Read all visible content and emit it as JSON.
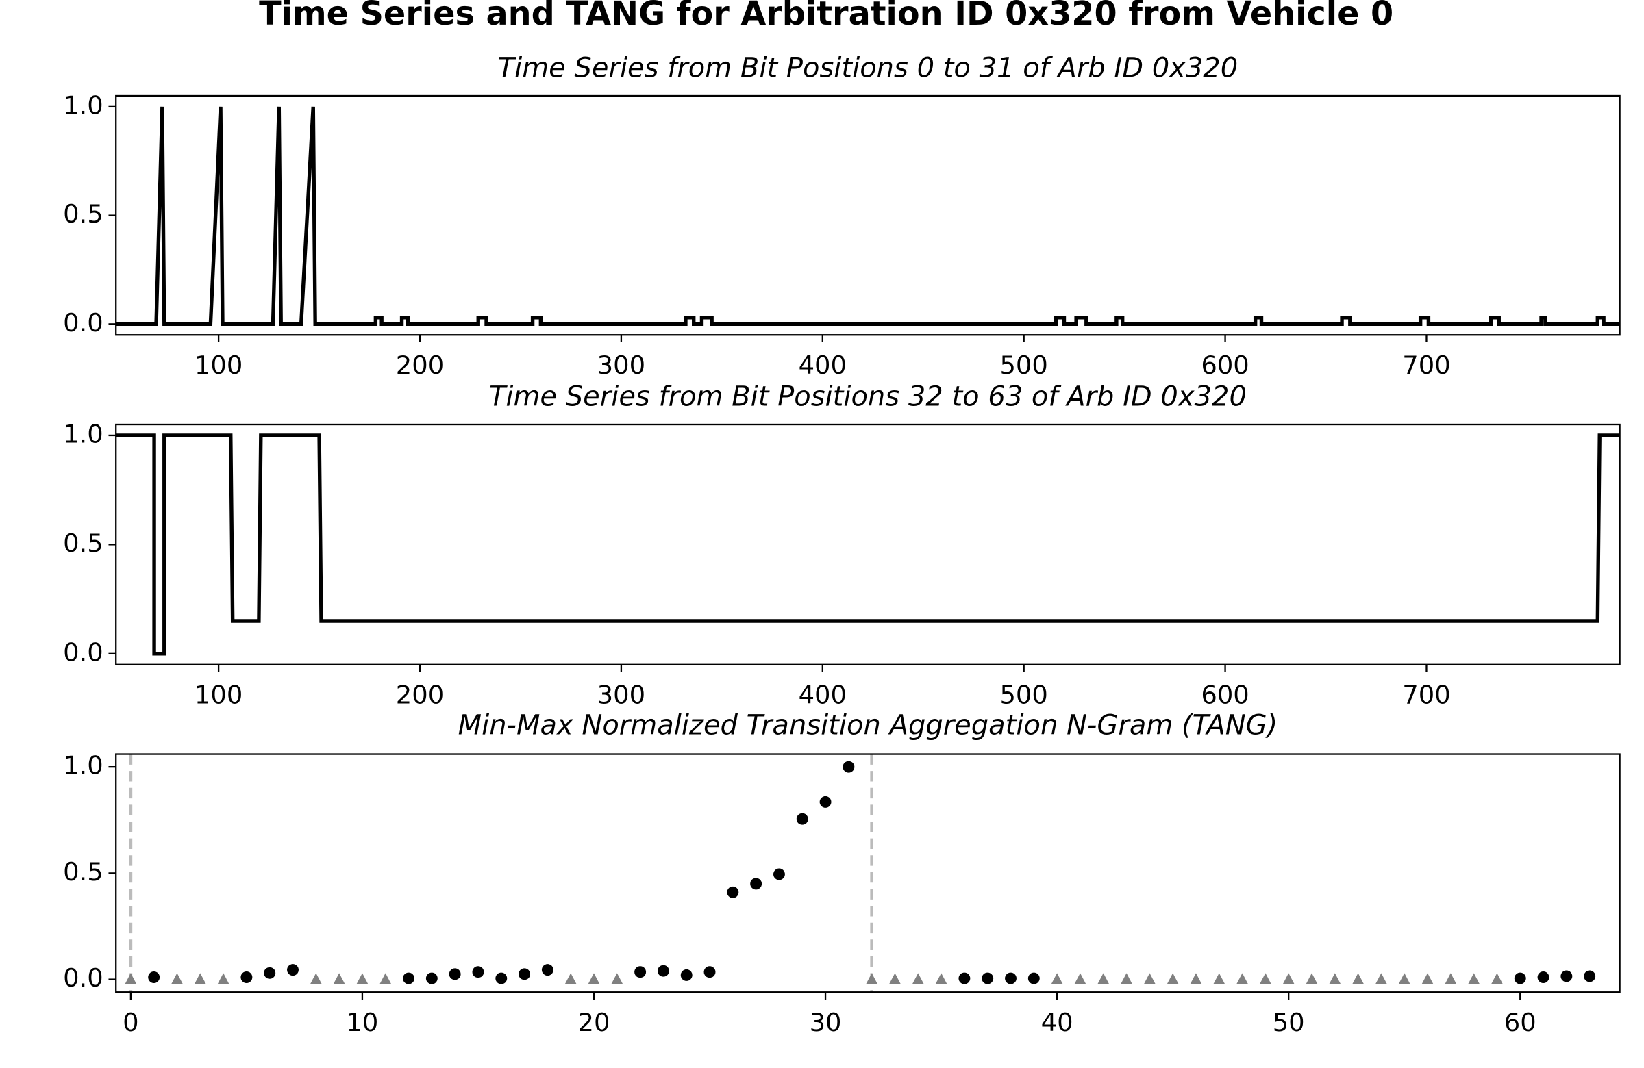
{
  "title": "Time Series and TANG for Arbitration ID 0x320 from Vehicle 0",
  "chart_data": [
    {
      "type": "line",
      "title": "Time Series from Bit Positions 0 to 31 of Arb ID 0x320",
      "color": "#000000",
      "x": [
        49,
        69,
        72,
        73,
        96,
        101,
        102,
        127,
        130,
        131,
        141,
        147,
        148,
        178,
        178,
        181,
        181,
        191,
        191,
        194,
        194,
        229,
        229,
        233,
        233,
        256,
        256,
        260,
        260,
        332,
        332,
        336,
        336,
        340,
        340,
        345,
        345,
        516,
        516,
        520,
        520,
        526,
        526,
        531,
        531,
        546,
        546,
        549,
        549,
        615,
        615,
        618,
        618,
        658,
        658,
        662,
        662,
        697,
        697,
        701,
        701,
        732,
        732,
        736,
        736,
        757,
        757,
        759,
        759,
        785,
        785,
        788,
        788,
        796
      ],
      "values": [
        0,
        0,
        1,
        0,
        0,
        1,
        0,
        0,
        1,
        0,
        0,
        1,
        0,
        0,
        0.03,
        0.03,
        0,
        0,
        0.03,
        0.03,
        0,
        0,
        0.03,
        0.03,
        0,
        0,
        0.03,
        0.03,
        0,
        0,
        0.03,
        0.03,
        0,
        0,
        0.03,
        0.03,
        0,
        0,
        0.03,
        0.03,
        0,
        0,
        0.03,
        0.03,
        0,
        0,
        0.03,
        0.03,
        0,
        0,
        0.03,
        0.03,
        0,
        0,
        0.03,
        0.03,
        0,
        0,
        0.03,
        0.03,
        0,
        0,
        0.03,
        0.03,
        0,
        0,
        0.03,
        0.03,
        0,
        0,
        0.03,
        0.03,
        0,
        0
      ],
      "xlim": [
        49,
        796
      ],
      "ylim": [
        -0.05,
        1.05
      ],
      "xticks": [
        100,
        200,
        300,
        400,
        500,
        600,
        700
      ],
      "yticks": [
        {
          "value": 0,
          "label": "0.0"
        },
        0.5,
        {
          "value": 1,
          "label": "1.0"
        }
      ]
    },
    {
      "type": "line",
      "title": "Time Series from Bit Positions 32 to 63 of Arb ID 0x320",
      "color": "#000000",
      "x": [
        49,
        68,
        68,
        73,
        73,
        106,
        107,
        120,
        121,
        150,
        151,
        785,
        786,
        796
      ],
      "values": [
        1,
        1,
        0,
        0,
        1,
        1,
        0.15,
        0.15,
        1,
        1,
        0.15,
        0.15,
        1,
        1
      ],
      "xlim": [
        49,
        796
      ],
      "ylim": [
        -0.05,
        1.05
      ],
      "xticks": [
        100,
        200,
        300,
        400,
        500,
        600,
        700
      ],
      "yticks": [
        {
          "value": 0,
          "label": "0.0"
        },
        0.5,
        {
          "value": 1,
          "label": "1.0"
        }
      ]
    },
    {
      "type": "scatter",
      "title": "Min-Max Normalized Transition Aggregation N-Gram (TANG)",
      "series": [
        {
          "marker": "circle",
          "color": "#000000",
          "x": [
            1,
            5,
            6,
            7,
            12,
            13,
            14,
            15,
            16,
            17,
            18,
            22,
            23,
            24,
            25,
            26,
            27,
            28,
            29,
            30,
            31,
            36,
            37,
            38,
            39,
            60,
            61,
            62,
            63
          ],
          "values": [
            0.01,
            0.01,
            0.03,
            0.045,
            0.005,
            0.005,
            0.025,
            0.035,
            0.005,
            0.025,
            0.045,
            0.035,
            0.04,
            0.02,
            0.035,
            0.41,
            0.45,
            0.495,
            0.755,
            0.835,
            1.0,
            0.005,
            0.005,
            0.005,
            0.005,
            0.005,
            0.01,
            0.015,
            0.015
          ]
        },
        {
          "marker": "triangle",
          "color": "#808080",
          "x": [
            0,
            2,
            3,
            4,
            8,
            9,
            10,
            11,
            19,
            20,
            21,
            32,
            33,
            34,
            35,
            40,
            41,
            42,
            43,
            44,
            45,
            46,
            47,
            48,
            49,
            50,
            51,
            52,
            53,
            54,
            55,
            56,
            57,
            58,
            59
          ],
          "values": [
            0,
            0,
            0,
            0,
            0,
            0,
            0,
            0,
            0,
            0,
            0,
            0,
            0,
            0,
            0,
            0,
            0,
            0,
            0,
            0,
            0,
            0,
            0,
            0,
            0,
            0,
            0,
            0,
            0,
            0,
            0,
            0,
            0,
            0,
            0
          ]
        }
      ],
      "vlines": [
        0,
        32
      ],
      "vline_color": "#bbbbbb",
      "xlim": [
        -0.64,
        64.3
      ],
      "ylim": [
        -0.06,
        1.06
      ],
      "xticks": [
        0,
        10,
        20,
        30,
        40,
        50,
        60
      ],
      "yticks": [
        {
          "value": 0,
          "label": "0.0"
        },
        0.5,
        {
          "value": 1,
          "label": "1.0"
        }
      ]
    }
  ]
}
